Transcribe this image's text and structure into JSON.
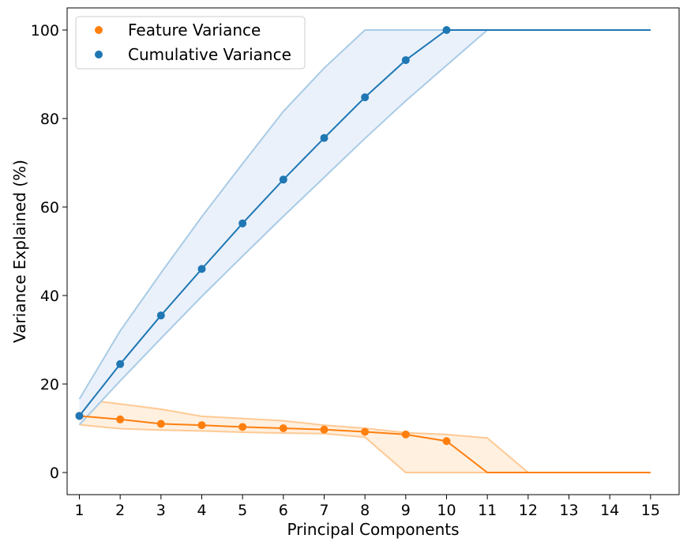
{
  "chart_data": {
    "type": "line",
    "xlabel": "Principal Components",
    "ylabel": "Variance Explained (%)",
    "xlim": [
      0.7,
      15.7
    ],
    "ylim": [
      -5,
      105
    ],
    "xticks": [
      "1",
      "2",
      "3",
      "4",
      "5",
      "6",
      "7",
      "8",
      "9",
      "10",
      "11",
      "12",
      "13",
      "14",
      "15"
    ],
    "yticks": [
      "0",
      "20",
      "40",
      "60",
      "80",
      "100"
    ],
    "legend_position": "top-left",
    "grid": false,
    "x": [
      1,
      2,
      3,
      4,
      5,
      6,
      7,
      8,
      9,
      10,
      11,
      12,
      13,
      14,
      15
    ],
    "series": [
      {
        "name": "Feature Variance",
        "color": "#ff7f0e",
        "values": [
          12.8,
          12.0,
          11.0,
          10.7,
          10.3,
          10.0,
          9.7,
          9.2,
          8.6,
          7.1,
          0,
          0,
          0,
          0,
          0
        ],
        "markers": [
          1,
          2,
          3,
          4,
          5,
          6,
          7,
          8,
          9,
          10
        ],
        "band_upper": [
          16.6,
          15.5,
          14.3,
          12.7,
          12.2,
          11.7,
          10.7,
          10.0,
          9.0,
          8.6,
          7.8,
          0,
          0,
          0,
          0
        ],
        "band_lower": [
          10.8,
          9.9,
          9.6,
          9.4,
          9.1,
          8.9,
          8.8,
          8.0,
          0,
          0,
          0,
          0,
          0,
          0,
          0
        ]
      },
      {
        "name": "Cumulative Variance",
        "color": "#1f77b4",
        "values": [
          12.8,
          24.5,
          35.5,
          46.0,
          56.3,
          66.2,
          75.6,
          84.8,
          93.2,
          100,
          100,
          100,
          100,
          100,
          100
        ],
        "markers": [
          1,
          2,
          3,
          4,
          5,
          6,
          7,
          8,
          9,
          10
        ],
        "band_upper": [
          16.6,
          32.0,
          45.1,
          57.8,
          69.8,
          81.6,
          91.4,
          100,
          100,
          100,
          100,
          100,
          100,
          100,
          100
        ],
        "band_lower": [
          10.8,
          20.7,
          30.3,
          39.8,
          48.9,
          57.9,
          66.7,
          75.5,
          84.0,
          92.0,
          100,
          100,
          100,
          100,
          100
        ]
      }
    ]
  }
}
